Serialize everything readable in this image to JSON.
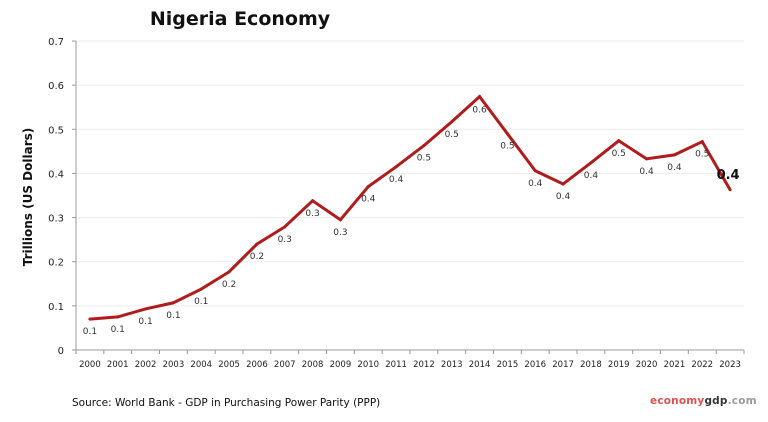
{
  "chart_data": {
    "type": "line",
    "title": "Nigeria Economy",
    "ylabel": "Trillions (US Dollars)",
    "xlabel": "",
    "ylim": [
      0,
      0.7
    ],
    "yticks": [
      "0",
      "0.1",
      "0.2",
      "0.3",
      "0.4",
      "0.5",
      "0.6",
      "0.7"
    ],
    "grid": true,
    "legend": "none",
    "categories": [
      "2000",
      "2001",
      "2002",
      "2003",
      "2004",
      "2005",
      "2006",
      "2007",
      "2008",
      "2009",
      "2010",
      "2011",
      "2012",
      "2013",
      "2014",
      "2015",
      "2016",
      "2017",
      "2018",
      "2019",
      "2020",
      "2021",
      "2022",
      "2023"
    ],
    "values": [
      0.07,
      0.075,
      0.093,
      0.107,
      0.138,
      0.177,
      0.24,
      0.279,
      0.338,
      0.295,
      0.37,
      0.415,
      0.463,
      0.517,
      0.574,
      0.49,
      0.406,
      0.376,
      0.424,
      0.474,
      0.433,
      0.442,
      0.472,
      0.363
    ],
    "data_labels": [
      "0.1",
      "0.1",
      "0.1",
      "0.1",
      "0.1",
      "0.2",
      "0.2",
      "0.3",
      "0.3",
      "0.3",
      "0.4",
      "0.4",
      "0.5",
      "0.5",
      "0.6",
      "0.5",
      "0.4",
      "0.4",
      "0.4",
      "0.5",
      "0.4",
      "0.4",
      "0.5",
      "0.4"
    ],
    "line_color": "#b01c1c"
  },
  "footer": {
    "source": "Source:  World Bank -  GDP  in Purchasing Power Parity (PPP)",
    "brand_part1": "economy",
    "brand_part2": "gdp",
    "brand_part3": ".com"
  }
}
